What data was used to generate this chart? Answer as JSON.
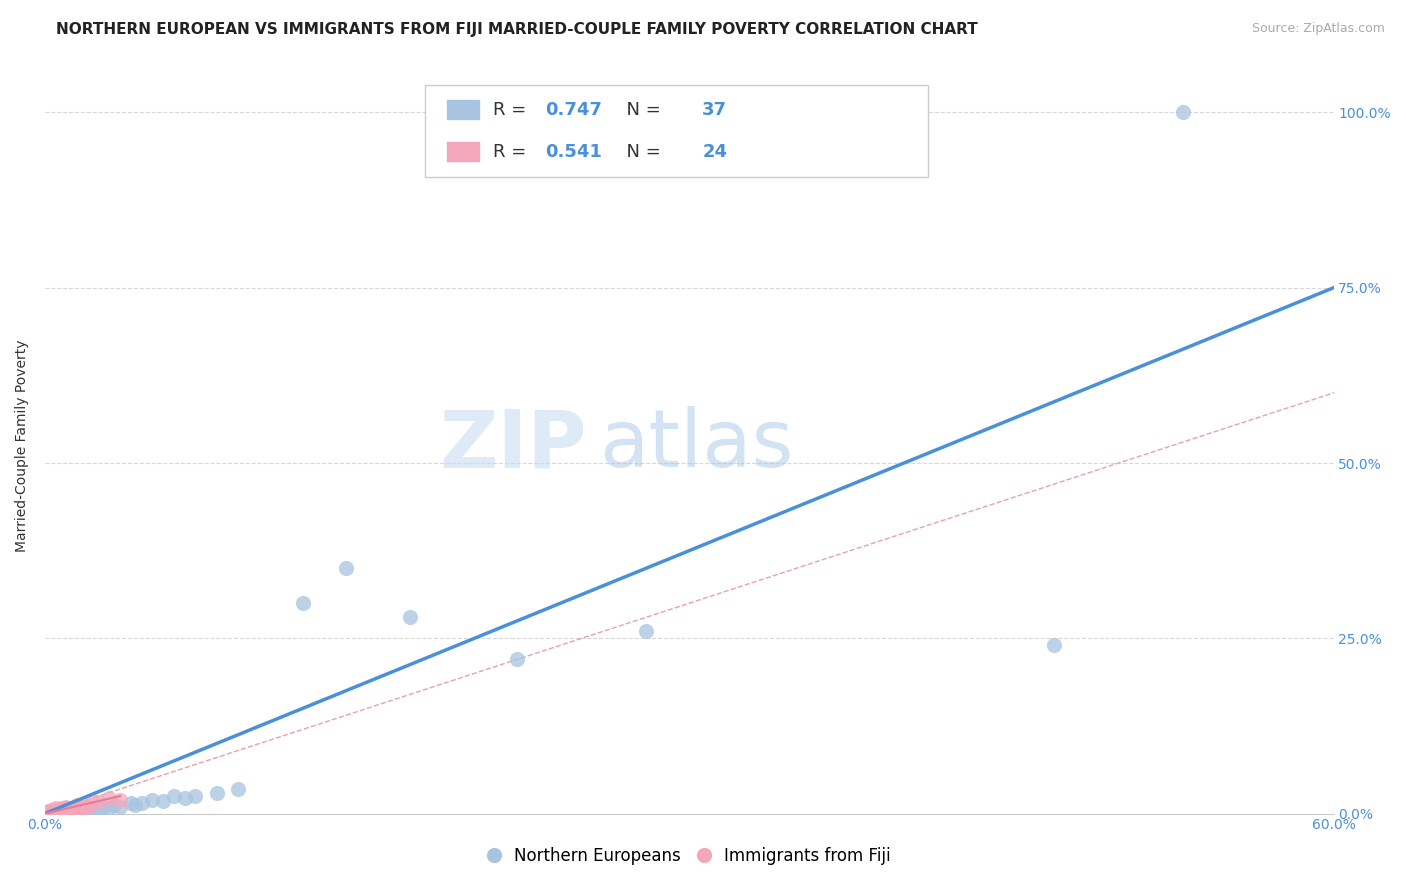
{
  "title": "NORTHERN EUROPEAN VS IMMIGRANTS FROM FIJI MARRIED-COUPLE FAMILY POVERTY CORRELATION CHART",
  "source": "Source: ZipAtlas.com",
  "ylabel": "Married-Couple Family Poverty",
  "xlim": [
    0,
    0.6
  ],
  "ylim": [
    0,
    1.05
  ],
  "yticks": [
    0.0,
    0.25,
    0.5,
    0.75,
    1.0
  ],
  "yticklabels": [
    "0.0%",
    "25.0%",
    "50.0%",
    "75.0%",
    "100.0%"
  ],
  "blue_R": "0.747",
  "blue_N": "37",
  "pink_R": "0.541",
  "pink_N": "24",
  "blue_color": "#a8c4e0",
  "pink_color": "#f4a7b9",
  "line_color": "#4a90d9",
  "pink_line_color": "#e87a9a",
  "diagonal_color": "#e8a0b0",
  "watermark_zip": "ZIP",
  "watermark_atlas": "atlas",
  "legend_labels": [
    "Northern Europeans",
    "Immigrants from Fiji"
  ],
  "blue_points_x": [
    0.0,
    0.003,
    0.005,
    0.007,
    0.008,
    0.01,
    0.01,
    0.012,
    0.013,
    0.015,
    0.015,
    0.017,
    0.018,
    0.02,
    0.022,
    0.025,
    0.027,
    0.03,
    0.032,
    0.035,
    0.04,
    0.042,
    0.045,
    0.05,
    0.055,
    0.06,
    0.065,
    0.07,
    0.08,
    0.09,
    0.12,
    0.14,
    0.17,
    0.22,
    0.28,
    0.47,
    0.53
  ],
  "blue_points_y": [
    0.0,
    0.002,
    0.003,
    0.005,
    0.003,
    0.005,
    0.008,
    0.005,
    0.007,
    0.005,
    0.008,
    0.006,
    0.007,
    0.005,
    0.006,
    0.008,
    0.01,
    0.008,
    0.012,
    0.01,
    0.015,
    0.012,
    0.015,
    0.02,
    0.018,
    0.025,
    0.022,
    0.025,
    0.03,
    0.035,
    0.3,
    0.35,
    0.28,
    0.22,
    0.26,
    0.24,
    1.0
  ],
  "pink_points_x": [
    0.0,
    0.0,
    0.002,
    0.003,
    0.004,
    0.005,
    0.005,
    0.006,
    0.007,
    0.008,
    0.008,
    0.01,
    0.01,
    0.012,
    0.013,
    0.015,
    0.015,
    0.017,
    0.018,
    0.02,
    0.022,
    0.025,
    0.03,
    0.035
  ],
  "pink_points_y": [
    0.0,
    0.002,
    0.003,
    0.005,
    0.003,
    0.005,
    0.008,
    0.003,
    0.006,
    0.005,
    0.008,
    0.005,
    0.01,
    0.008,
    0.007,
    0.005,
    0.012,
    0.008,
    0.012,
    0.01,
    0.018,
    0.017,
    0.022,
    0.02
  ],
  "title_fontsize": 11,
  "axis_label_fontsize": 10,
  "tick_fontsize": 10,
  "legend_fontsize": 12
}
